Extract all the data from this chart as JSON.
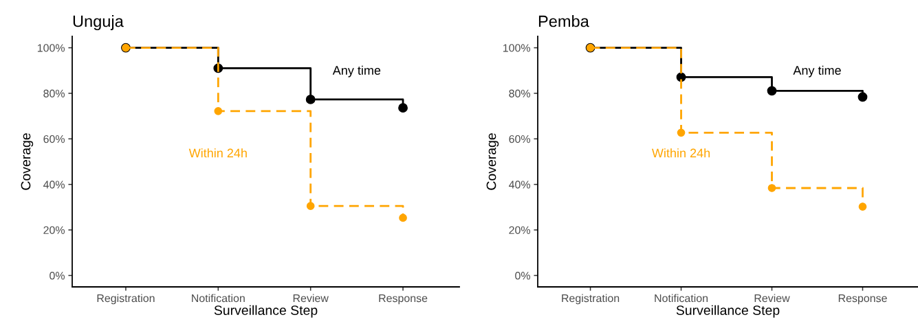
{
  "chart_data": [
    {
      "type": "step",
      "title": "Unguja",
      "xlabel": "Surveillance Step",
      "ylabel": "Coverage",
      "categories": [
        "Registration",
        "Notification",
        "Review",
        "Response"
      ],
      "series": [
        {
          "name": "Any time",
          "color": "#000000",
          "line_style": "solid",
          "values": [
            100,
            91,
            77.3,
            73.6
          ]
        },
        {
          "name": "Within 24h",
          "color": "#ffa500",
          "line_style": "dashed",
          "values": [
            100,
            72.2,
            30.5,
            25.3
          ]
        }
      ],
      "ylim": [
        -5,
        105
      ],
      "yticks": [
        {
          "value": 0,
          "label": "0%"
        },
        {
          "value": 20,
          "label": "20%"
        },
        {
          "value": 40,
          "label": "40%"
        },
        {
          "value": 60,
          "label": "60%"
        },
        {
          "value": 80,
          "label": "80%"
        },
        {
          "value": 100,
          "label": "100%"
        }
      ],
      "marker": "circle",
      "grid": false,
      "legend": false
    },
    {
      "type": "step",
      "title": "Pemba",
      "xlabel": "Surveillance Step",
      "ylabel": "Coverage",
      "categories": [
        "Registration",
        "Notification",
        "Review",
        "Response"
      ],
      "series": [
        {
          "name": "Any time",
          "color": "#000000",
          "line_style": "solid",
          "values": [
            100,
            87.1,
            81.1,
            78.4
          ]
        },
        {
          "name": "Within 24h",
          "color": "#ffa500",
          "line_style": "dashed",
          "values": [
            100,
            62.7,
            38.4,
            30.2
          ]
        }
      ],
      "ylim": [
        -5,
        105
      ],
      "yticks": [
        {
          "value": 0,
          "label": "0%"
        },
        {
          "value": 20,
          "label": "20%"
        },
        {
          "value": 40,
          "label": "40%"
        },
        {
          "value": 60,
          "label": "60%"
        },
        {
          "value": 80,
          "label": "80%"
        },
        {
          "value": 100,
          "label": "100%"
        }
      ],
      "marker": "circle",
      "grid": false,
      "legend": false
    }
  ]
}
